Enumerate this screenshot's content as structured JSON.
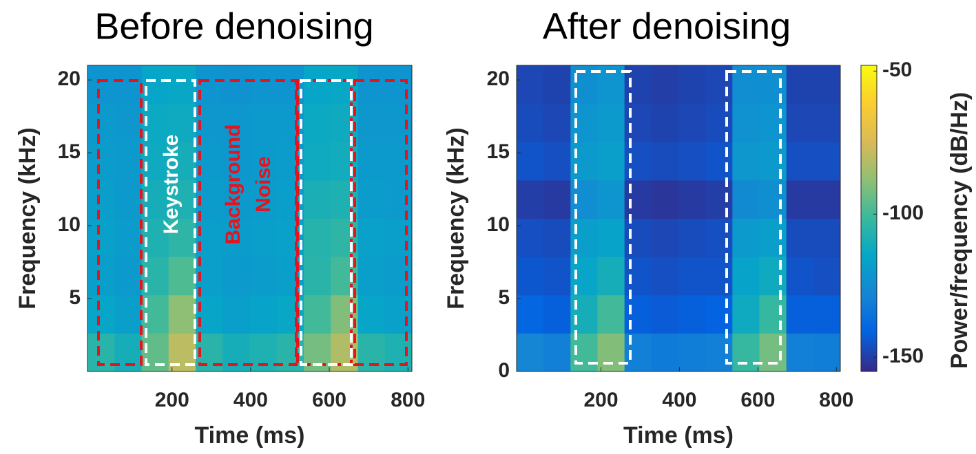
{
  "chart_data": [
    {
      "type": "heatmap",
      "title": "Before denoising",
      "x_label": "Time (ms)",
      "y_label": "Frequency (kHz)",
      "xlim": [
        -15,
        810
      ],
      "xticks": [
        200,
        400,
        600,
        800
      ],
      "ylim": [
        0,
        21
      ],
      "yticks": [
        5,
        10,
        15,
        20
      ],
      "clim": [
        -155,
        -48
      ],
      "z": [
        [
          -105,
          -110,
          -95,
          -80,
          -105,
          -110,
          -108,
          -105,
          -92,
          -82,
          -105,
          -108
        ],
        [
          -115,
          -118,
          -100,
          -88,
          -115,
          -118,
          -116,
          -114,
          -100,
          -90,
          -115,
          -117
        ],
        [
          -118,
          -120,
          -105,
          -98,
          -118,
          -120,
          -119,
          -118,
          -105,
          -100,
          -118,
          -119
        ],
        [
          -117,
          -119,
          -108,
          -104,
          -118,
          -119,
          -118,
          -117,
          -106,
          -104,
          -117,
          -118
        ],
        [
          -118,
          -120,
          -110,
          -108,
          -119,
          -120,
          -119,
          -118,
          -109,
          -108,
          -119,
          -120
        ],
        [
          -119,
          -120,
          -112,
          -110,
          -120,
          -121,
          -120,
          -119,
          -112,
          -111,
          -120,
          -120
        ],
        [
          -120,
          -121,
          -113,
          -112,
          -121,
          -121,
          -120,
          -120,
          -113,
          -112,
          -121,
          -121
        ],
        [
          -122,
          -122,
          -115,
          -114,
          -122,
          -123,
          -122,
          -122,
          -115,
          -114,
          -122,
          -122
        ]
      ],
      "annotations": [
        {
          "text": "Keystroke",
          "color": "#ffffff"
        },
        {
          "lines": [
            "Background",
            "Noise"
          ],
          "color": "#e8121c"
        }
      ]
    },
    {
      "type": "heatmap",
      "title": "After denoising",
      "x_label": "Time (ms)",
      "y_label": "Frequency (kHz)",
      "xlim": [
        -15,
        810
      ],
      "xticks": [
        200,
        400,
        600,
        800
      ],
      "ylim": [
        0,
        21
      ],
      "yticks": [
        0,
        5,
        10,
        15,
        20
      ],
      "clim": [
        -155,
        -48
      ],
      "z": [
        [
          -128,
          -130,
          -100,
          -90,
          -130,
          -132,
          -131,
          -130,
          -102,
          -92,
          -130,
          -131
        ],
        [
          -140,
          -142,
          -110,
          -100,
          -142,
          -143,
          -142,
          -141,
          -112,
          -102,
          -142,
          -142
        ],
        [
          -144,
          -145,
          -115,
          -110,
          -145,
          -146,
          -145,
          -145,
          -116,
          -112,
          -145,
          -146
        ],
        [
          -146,
          -147,
          -118,
          -116,
          -147,
          -148,
          -147,
          -146,
          -120,
          -118,
          -147,
          -147
        ],
        [
          -150,
          -151,
          -125,
          -122,
          -151,
          -152,
          -151,
          -150,
          -126,
          -124,
          -151,
          -151
        ],
        [
          -145,
          -146,
          -120,
          -118,
          -146,
          -147,
          -146,
          -145,
          -121,
          -120,
          -146,
          -146
        ],
        [
          -147,
          -148,
          -122,
          -120,
          -148,
          -149,
          -148,
          -147,
          -123,
          -122,
          -148,
          -148
        ],
        [
          -148,
          -149,
          -124,
          -122,
          -149,
          -150,
          -149,
          -148,
          -125,
          -124,
          -149,
          -149
        ]
      ],
      "colorbar": {
        "label": "Power/frequency (dB/Hz)",
        "ticks": [
          -50,
          -100,
          -150
        ]
      }
    }
  ]
}
